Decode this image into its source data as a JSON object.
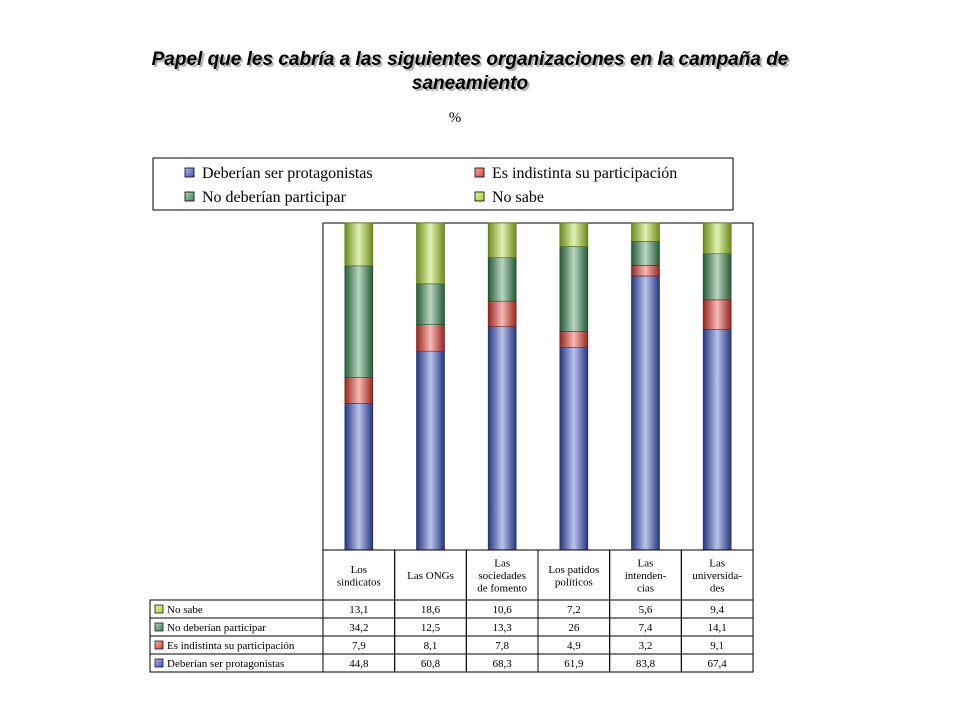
{
  "title": "Papel que les cabría a las siguientes organizaciones en la campaña de saneamiento",
  "subtitle": "%",
  "chart_data": {
    "type": "bar",
    "stacked": true,
    "ylim": [
      0,
      100
    ],
    "grid": false,
    "legend_position": "top",
    "categories": [
      [
        "Los",
        "sindicatos"
      ],
      [
        "Las ONGs"
      ],
      [
        "Las",
        "sociedades",
        "de fomento"
      ],
      [
        "Los patidos",
        "políticos"
      ],
      [
        "Las",
        "intenden-",
        "cias"
      ],
      [
        "Las",
        "universida-",
        "des"
      ]
    ],
    "series": [
      {
        "name": "Deberían ser protagonistas",
        "color": "#3b53c4",
        "values": [
          44.8,
          60.8,
          68.3,
          61.9,
          83.8,
          67.4
        ],
        "labels": [
          "44,8",
          "60,8",
          "68,3",
          "61,9",
          "83,8",
          "67,4"
        ]
      },
      {
        "name": "Es indistinta su participación",
        "color": "#e8392e",
        "values": [
          7.9,
          8.1,
          7.8,
          4.9,
          3.2,
          9.1
        ],
        "labels": [
          "7,9",
          "8,1",
          "7,8",
          "4,9",
          "3,2",
          "9,1"
        ]
      },
      {
        "name": "No deberían participar",
        "color": "#3a8a52",
        "values": [
          34.2,
          12.5,
          13.3,
          26,
          7.4,
          14.1
        ],
        "labels": [
          "34,2",
          "12,5",
          "13,3",
          "26",
          "7,4",
          "14,1"
        ]
      },
      {
        "name": "No sabe",
        "color": "#a8d62a",
        "values": [
          13.1,
          18.6,
          10.6,
          7.2,
          5.6,
          9.4
        ],
        "labels": [
          "13,1",
          "18,6",
          "10,6",
          "7,2",
          "5,6",
          "9,4"
        ]
      }
    ],
    "legend_entries": [
      "Deberían ser protagonistas",
      "Es indistinta su participación",
      "No deberían participar",
      "No sabe"
    ],
    "table_row_order": [
      "No sabe",
      "No deberían participar",
      "Es indistinta su participación",
      "Deberían ser protagonistas"
    ]
  }
}
